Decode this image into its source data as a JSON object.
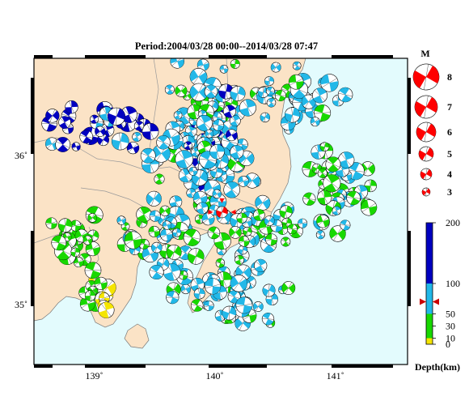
{
  "title": "Period:2004/03/28 00:00--2014/03/28 07:47",
  "map": {
    "lon_range": [
      138.5,
      141.6
    ],
    "lat_range": [
      34.6,
      36.65
    ],
    "lon_ticks": [
      {
        "value": 139,
        "label": "139˚"
      },
      {
        "value": 140,
        "label": "140˚"
      },
      {
        "value": 141,
        "label": "141˚"
      }
    ],
    "lat_ticks": [
      {
        "value": 36,
        "label": "36˚"
      },
      {
        "value": 35,
        "label": "35˚"
      }
    ],
    "colors": {
      "land": "#fbe3c6",
      "sea": "#e3fbfd",
      "frame": "#000000",
      "border": "#999999"
    },
    "latest_event": {
      "lon": 140.06,
      "lat": 35.62,
      "color": "#ff0000"
    }
  },
  "magnitude_legend": {
    "heading": "M",
    "items": [
      "8",
      "7",
      "6",
      "5",
      "4",
      "3"
    ],
    "color": "#ff0000"
  },
  "depth_colorbar": {
    "title": "Depth(km)",
    "ticks": [
      "0",
      "10",
      "30",
      "50",
      "100",
      "200"
    ],
    "bands": [
      {
        "from": 0,
        "to": 10,
        "color": "#f5e500"
      },
      {
        "from": 10,
        "to": 30,
        "color": "#18d800"
      },
      {
        "from": 30,
        "to": 50,
        "color": "#18d800"
      },
      {
        "from": 50,
        "to": 100,
        "color": "#22b8e8"
      },
      {
        "from": 100,
        "to": 200,
        "color": "#0000c0"
      }
    ],
    "marker_depth": 70
  }
}
